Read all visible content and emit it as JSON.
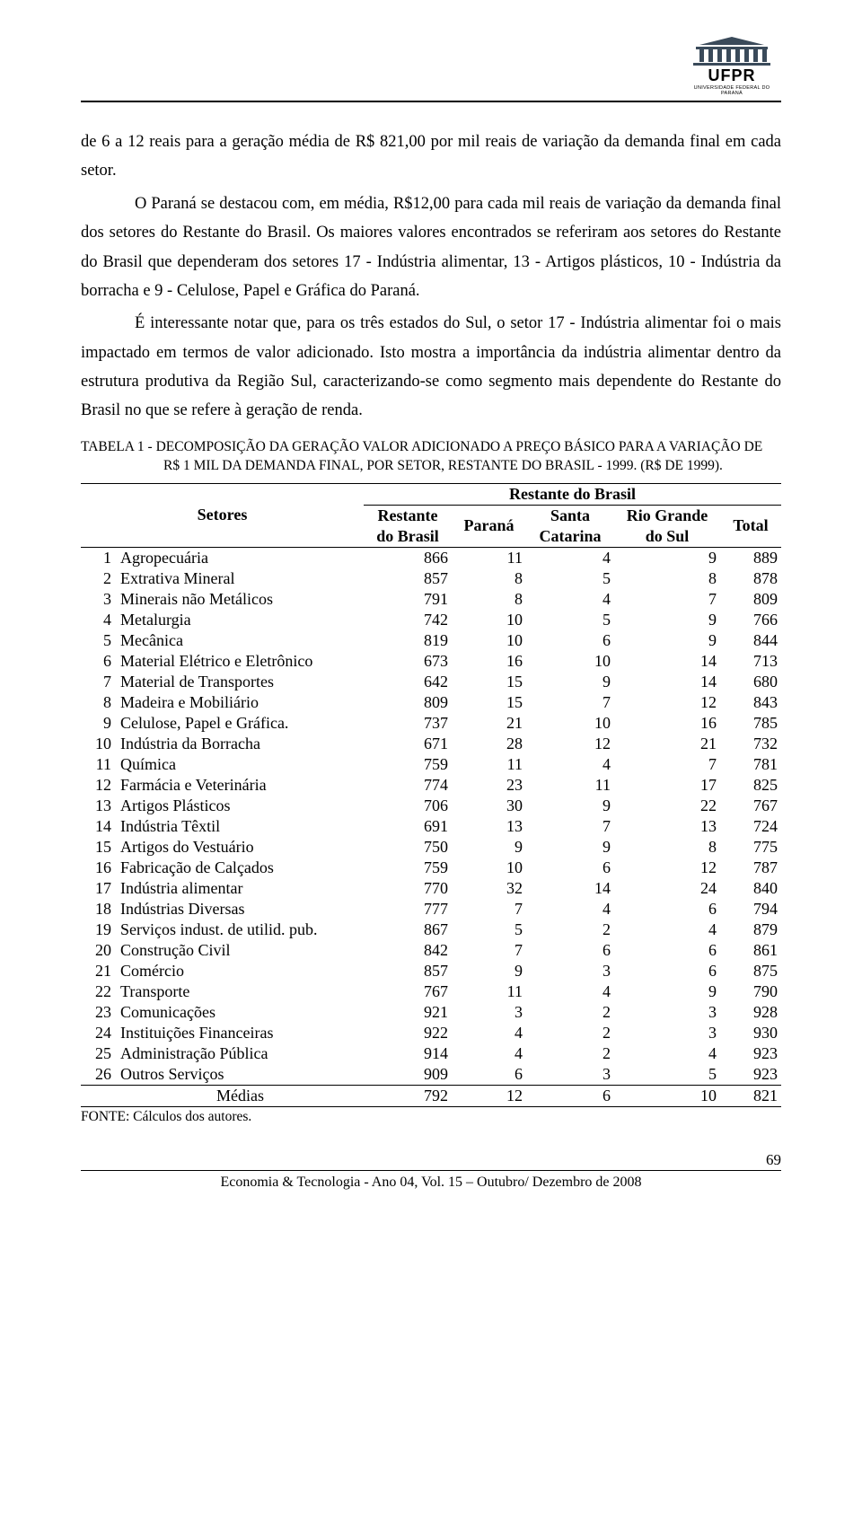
{
  "logo": {
    "name": "UFPR",
    "subtitle": "UNIVERSIDADE FEDERAL DO PARANÁ"
  },
  "paragraphs": {
    "p1a": "de 6 a 12 reais para a geração média de R$ 821,00 por mil reais de variação da demanda final em cada setor.",
    "p1b": "O Paraná se destacou com, em média, R$12,00 para cada mil reais de variação da demanda final dos setores do Restante do Brasil. Os maiores valores encontrados se referiram aos setores do Restante do Brasil que dependeram dos setores 17 - Indústria alimentar, 13 - Artigos plásticos, 10 - Indústria da borracha e 9 - Celulose, Papel e Gráfica do Paraná.",
    "p2": "É interessante notar que, para os três estados do Sul, o setor 17 - Indústria alimentar foi o mais impactado em termos de valor adicionado. Isto mostra a importância da indústria alimentar dentro da estrutura produtiva da Região Sul, caracterizando-se como segmento mais dependente do Restante do Brasil no que se refere à geração de renda."
  },
  "table_caption": "TABELA 1 - DECOMPOSIÇÃO DA GERAÇÃO VALOR ADICIONADO A PREÇO BÁSICO PARA A VARIAÇÃO DE R$ 1 MIL DA DEMANDA FINAL, POR SETOR, RESTANTE DO BRASIL - 1999. (R$ DE 1999).",
  "table": {
    "head": {
      "setores": "Setores",
      "group": "Restante do Brasil",
      "c1a": "Restante",
      "c1b": "do Brasil",
      "c2": "Paraná",
      "c3a": "Santa",
      "c3b": "Catarina",
      "c4a": "Rio Grande",
      "c4b": "do Sul",
      "c5": "Total"
    },
    "rows": [
      {
        "i": "1",
        "name": "Agropecuária",
        "v": [
          866,
          11,
          4,
          9,
          889
        ]
      },
      {
        "i": "2",
        "name": "Extrativa Mineral",
        "v": [
          857,
          8,
          5,
          8,
          878
        ]
      },
      {
        "i": "3",
        "name": "Minerais não Metálicos",
        "v": [
          791,
          8,
          4,
          7,
          809
        ]
      },
      {
        "i": "4",
        "name": "Metalurgia",
        "v": [
          742,
          10,
          5,
          9,
          766
        ]
      },
      {
        "i": "5",
        "name": "Mecânica",
        "v": [
          819,
          10,
          6,
          9,
          844
        ]
      },
      {
        "i": "6",
        "name": "Material Elétrico e Eletrônico",
        "v": [
          673,
          16,
          10,
          14,
          713
        ]
      },
      {
        "i": "7",
        "name": "Material de Transportes",
        "v": [
          642,
          15,
          9,
          14,
          680
        ]
      },
      {
        "i": "8",
        "name": "Madeira e Mobiliário",
        "v": [
          809,
          15,
          7,
          12,
          843
        ]
      },
      {
        "i": "9",
        "name": "Celulose, Papel e Gráfica.",
        "v": [
          737,
          21,
          10,
          16,
          785
        ]
      },
      {
        "i": "10",
        "name": "Indústria da Borracha",
        "v": [
          671,
          28,
          12,
          21,
          732
        ]
      },
      {
        "i": "11",
        "name": "Química",
        "v": [
          759,
          11,
          4,
          7,
          781
        ]
      },
      {
        "i": "12",
        "name": "Farmácia e Veterinária",
        "v": [
          774,
          23,
          11,
          17,
          825
        ]
      },
      {
        "i": "13",
        "name": "Artigos Plásticos",
        "v": [
          706,
          30,
          9,
          22,
          767
        ]
      },
      {
        "i": "14",
        "name": "Indústria Têxtil",
        "v": [
          691,
          13,
          7,
          13,
          724
        ]
      },
      {
        "i": "15",
        "name": "Artigos do Vestuário",
        "v": [
          750,
          9,
          9,
          8,
          775
        ]
      },
      {
        "i": "16",
        "name": "Fabricação de Calçados",
        "v": [
          759,
          10,
          6,
          12,
          787
        ]
      },
      {
        "i": "17",
        "name": "Indústria alimentar",
        "v": [
          770,
          32,
          14,
          24,
          840
        ]
      },
      {
        "i": "18",
        "name": "Indústrias Diversas",
        "v": [
          777,
          7,
          4,
          6,
          794
        ]
      },
      {
        "i": "19",
        "name": "Serviços indust. de utilid. pub.",
        "v": [
          867,
          5,
          2,
          4,
          879
        ]
      },
      {
        "i": "20",
        "name": "Construção Civil",
        "v": [
          842,
          7,
          6,
          6,
          861
        ]
      },
      {
        "i": "21",
        "name": "Comércio",
        "v": [
          857,
          9,
          3,
          6,
          875
        ]
      },
      {
        "i": "22",
        "name": "Transporte",
        "v": [
          767,
          11,
          4,
          9,
          790
        ]
      },
      {
        "i": "23",
        "name": "Comunicações",
        "v": [
          921,
          3,
          2,
          3,
          928
        ]
      },
      {
        "i": "24",
        "name": "Instituições Financeiras",
        "v": [
          922,
          4,
          2,
          3,
          930
        ]
      },
      {
        "i": "25",
        "name": "Administração Pública",
        "v": [
          914,
          4,
          2,
          4,
          923
        ]
      },
      {
        "i": "26",
        "name": "Outros Serviços",
        "v": [
          909,
          6,
          3,
          5,
          923
        ]
      }
    ],
    "medias": {
      "label": "Médias",
      "v": [
        792,
        12,
        6,
        10,
        821
      ]
    }
  },
  "fonte": "FONTE: Cálculos dos autores.",
  "footer": {
    "line": "Economia & Tecnologia - Ano 04, Vol. 15 – Outubro/ Dezembro de 2008",
    "page": "69"
  }
}
